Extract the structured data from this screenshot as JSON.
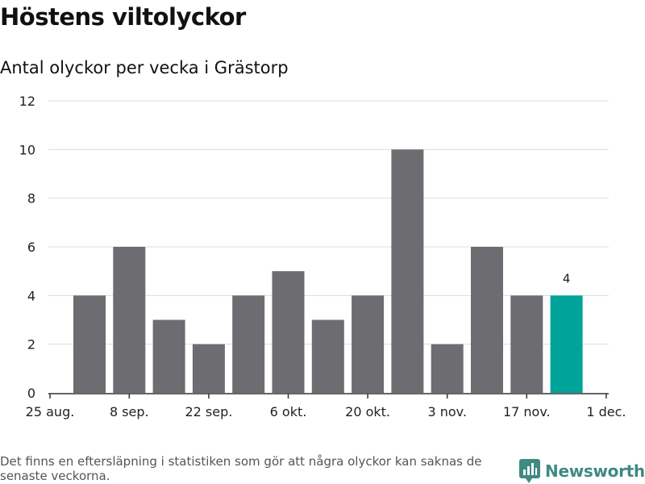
{
  "title": "Höstens viltolyckor",
  "subtitle": "Antal olyckor per vecka i Grästorp",
  "footnote": "Det finns en eftersläpning i statistiken som gör att några olyckor kan saknas de senaste veckorna.",
  "brand": "Newsworthy",
  "colors": {
    "bar": "#6d6c71",
    "highlight": "#00a39a",
    "grid": "#dcdcdc",
    "axis": "#333333",
    "brand": "#3f8a82"
  },
  "chart_data": {
    "type": "bar",
    "title": "Höstens viltolyckor",
    "subtitle": "Antal olyckor per vecka i Grästorp",
    "xlabel": "",
    "ylabel": "",
    "ylim": [
      0,
      12
    ],
    "yticks": [
      0,
      2,
      4,
      6,
      8,
      10,
      12
    ],
    "x_tick_labels": [
      "25 aug.",
      "8 sep.",
      "22 sep.",
      "6 okt.",
      "20 okt.",
      "3 nov.",
      "17 nov.",
      "1 dec."
    ],
    "values": [
      4,
      6,
      3,
      2,
      4,
      5,
      3,
      4,
      10,
      2,
      6,
      4,
      4
    ],
    "highlight_index": 12,
    "data_labels": [
      {
        "index": 12,
        "text": "4"
      }
    ],
    "grid": true
  }
}
